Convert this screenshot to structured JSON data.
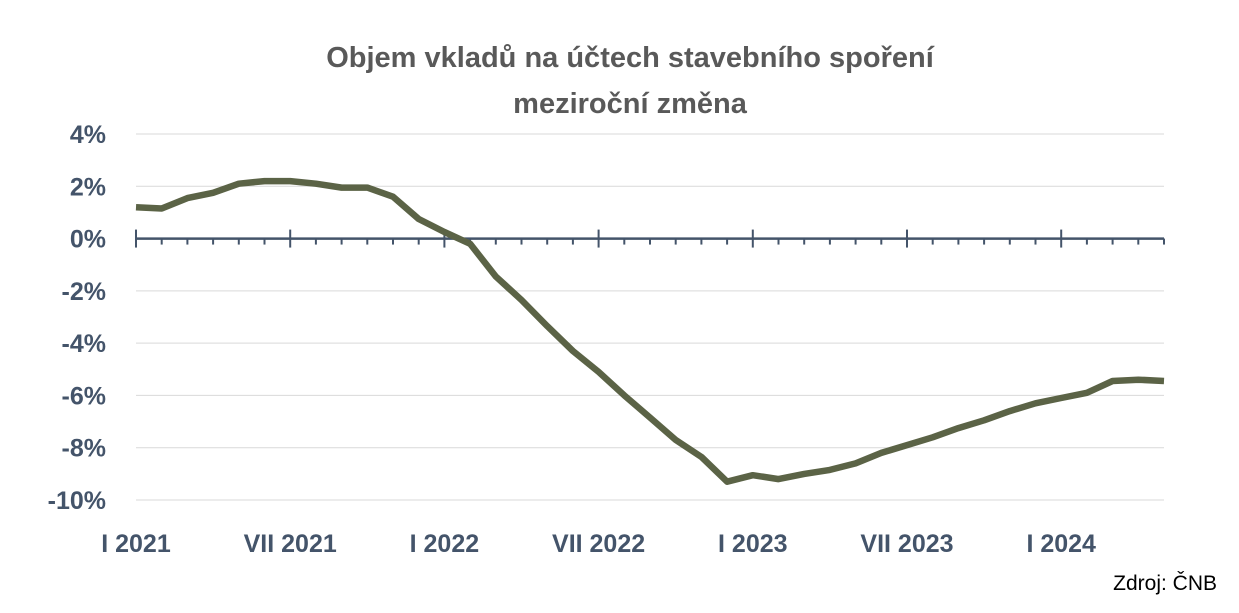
{
  "chart_data": {
    "type": "line",
    "title": "Objem vkladů na účtech stavebního spoření",
    "subtitle": "meziroční změna",
    "ylim": [
      -10,
      4
    ],
    "y_ticks": [
      4,
      2,
      0,
      -2,
      -4,
      -6,
      -8,
      -10
    ],
    "y_tick_labels": [
      "4%",
      "2%",
      "0%",
      "-2%",
      "-4%",
      "-6%",
      "-8%",
      "-10%"
    ],
    "x_tick_labels": [
      "I 2021",
      "VII 2021",
      "I 2022",
      "VII 2022",
      "I 2023",
      "VII 2023",
      "I 2024"
    ],
    "grid": true,
    "legend": "none",
    "line_color": "#5b6346",
    "x": [
      "2021-01",
      "2021-02",
      "2021-03",
      "2021-04",
      "2021-05",
      "2021-06",
      "2021-07",
      "2021-08",
      "2021-09",
      "2021-10",
      "2021-11",
      "2021-12",
      "2022-01",
      "2022-02",
      "2022-03",
      "2022-04",
      "2022-05",
      "2022-06",
      "2022-07",
      "2022-08",
      "2022-09",
      "2022-10",
      "2022-11",
      "2022-12",
      "2023-01",
      "2023-02",
      "2023-03",
      "2023-04",
      "2023-05",
      "2023-06",
      "2023-07",
      "2023-08",
      "2023-09",
      "2023-10",
      "2023-11",
      "2023-12",
      "2024-01",
      "2024-02",
      "2024-03",
      "2024-04",
      "2024-05"
    ],
    "series": [
      {
        "values": [
          1.2,
          1.15,
          1.55,
          1.75,
          2.1,
          2.2,
          2.2,
          2.1,
          1.95,
          1.95,
          1.6,
          0.75,
          0.25,
          -0.2,
          -1.45,
          -2.35,
          -3.35,
          -4.3,
          -5.1,
          -6.0,
          -6.85,
          -7.7,
          -8.35,
          -9.3,
          -9.05,
          -9.2,
          -9.0,
          -8.85,
          -8.6,
          -8.2,
          -7.9,
          -7.6,
          -7.25,
          -6.95,
          -6.6,
          -6.3,
          -6.1,
          -5.9,
          -5.45,
          -5.4,
          -5.45
        ]
      }
    ]
  },
  "source": "Zdroj: ČNB"
}
